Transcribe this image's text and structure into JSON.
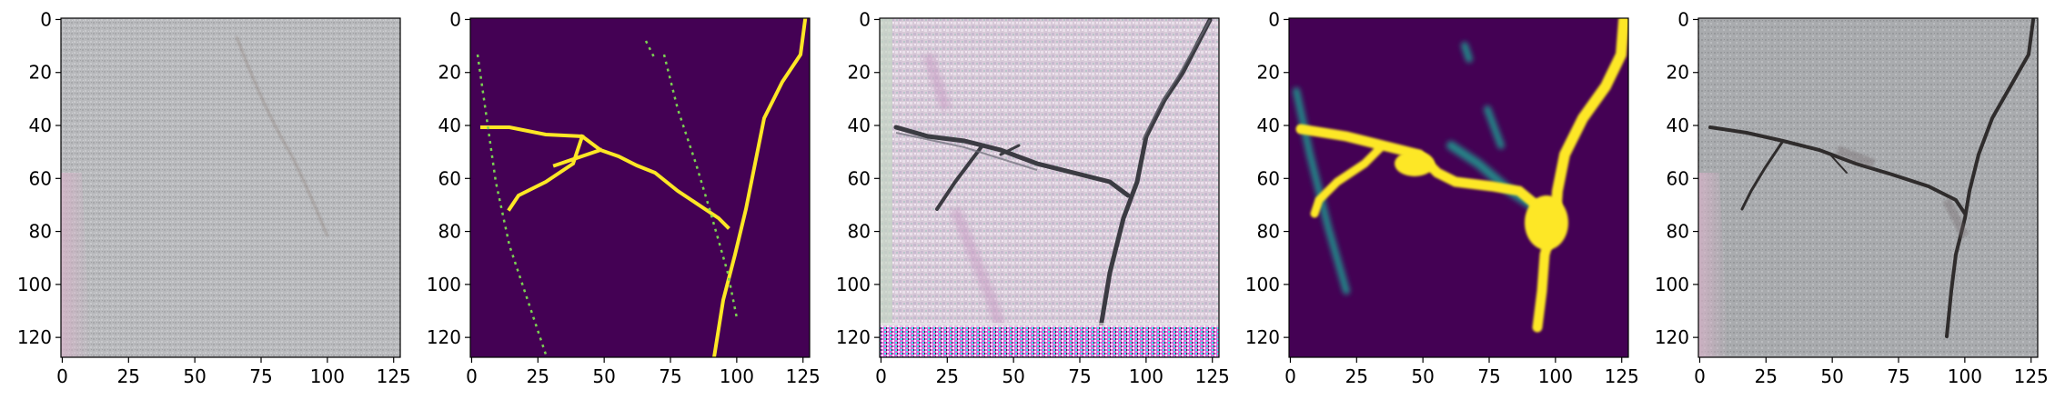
{
  "figure": {
    "panel_count": 5,
    "axis_range": {
      "x": [
        0,
        127
      ],
      "y": [
        0,
        127
      ]
    },
    "x_ticks": [
      "0",
      "25",
      "50",
      "75",
      "100",
      "125"
    ],
    "y_ticks": [
      "0",
      "20",
      "40",
      "60",
      "80",
      "100",
      "120"
    ],
    "panels": [
      {
        "name": "input-image",
        "kind": "photo",
        "description": "grey concrete texture with faint crack"
      },
      {
        "name": "ground-truth-mask",
        "kind": "binary-mask",
        "colors": {
          "background": "#440154",
          "foreground": "#fde725"
        }
      },
      {
        "name": "generated-image",
        "kind": "photo",
        "description": "synthetic cracked surface with colorful artifacts"
      },
      {
        "name": "predicted-mask",
        "kind": "heatmap",
        "colors": {
          "background": "#440154",
          "mid": "#21918c",
          "high": "#fde725"
        }
      },
      {
        "name": "overlay-image",
        "kind": "photo",
        "description": "concrete with crack overlay"
      }
    ]
  }
}
